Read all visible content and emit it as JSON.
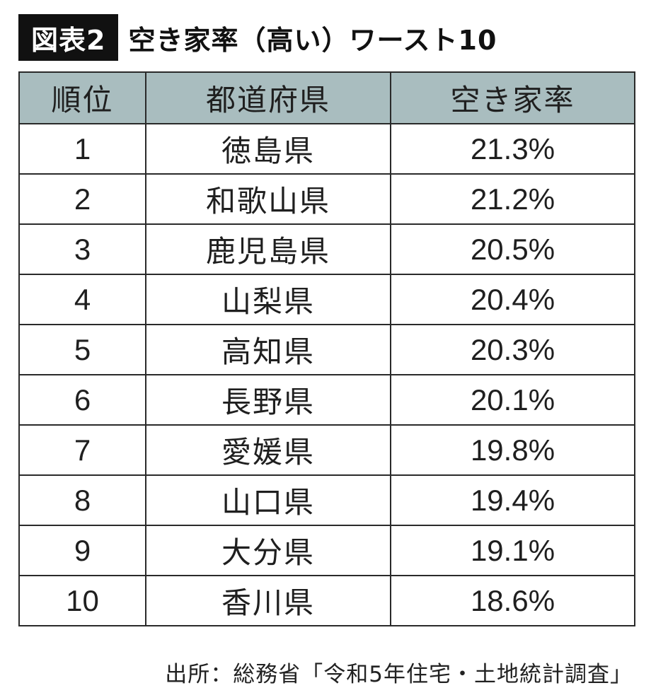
{
  "header": {
    "badge": "図表2",
    "title": "空き家率（高い）ワースト10"
  },
  "table": {
    "columns": [
      "順位",
      "都道府県",
      "空き家率"
    ],
    "header_bg": "#a9bdbf"
  },
  "chart_data": {
    "type": "table",
    "columns": [
      "順位",
      "都道府県",
      "空き家率"
    ],
    "rows": [
      {
        "rank": "1",
        "prefecture": "徳島県",
        "rate": "21.3%"
      },
      {
        "rank": "2",
        "prefecture": "和歌山県",
        "rate": "21.2%"
      },
      {
        "rank": "3",
        "prefecture": "鹿児島県",
        "rate": "20.5%"
      },
      {
        "rank": "4",
        "prefecture": "山梨県",
        "rate": "20.4%"
      },
      {
        "rank": "5",
        "prefecture": "高知県",
        "rate": "20.3%"
      },
      {
        "rank": "6",
        "prefecture": "長野県",
        "rate": "20.1%"
      },
      {
        "rank": "7",
        "prefecture": "愛媛県",
        "rate": "19.8%"
      },
      {
        "rank": "8",
        "prefecture": "山口県",
        "rate": "19.4%"
      },
      {
        "rank": "9",
        "prefecture": "大分県",
        "rate": "19.1%"
      },
      {
        "rank": "10",
        "prefecture": "香川県",
        "rate": "18.6%"
      }
    ]
  },
  "source": "出所：総務省「令和5年住宅・土地統計調査」"
}
